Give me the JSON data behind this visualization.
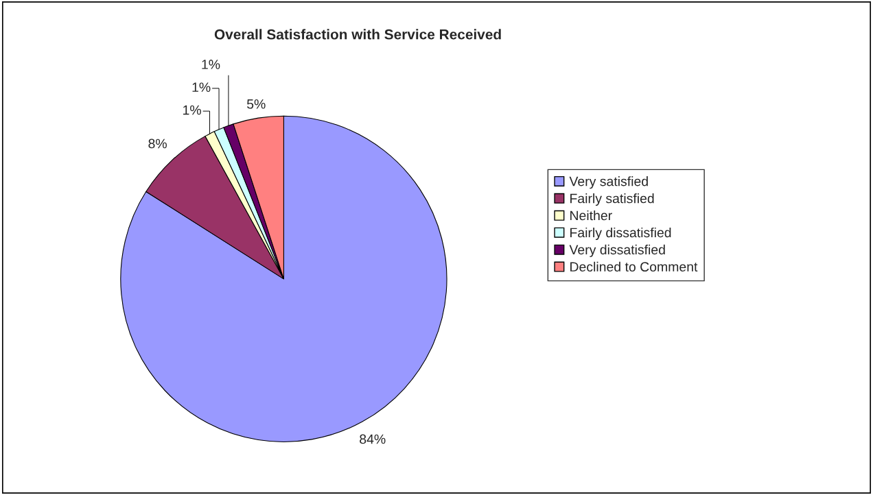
{
  "chart_data": {
    "type": "pie",
    "title": "Overall Satisfaction with Service Received",
    "categories": [
      "Very satisfied",
      "Fairly satisfied",
      "Neither",
      "Fairly dissatisfied",
      "Very dissatisfied",
      "Declined to Comment"
    ],
    "values": [
      84,
      8,
      1,
      1,
      1,
      5
    ],
    "value_labels": [
      "84%",
      "8%",
      "1%",
      "1%",
      "1%",
      "5%"
    ],
    "colors": [
      "#9999ff",
      "#993366",
      "#ffffcc",
      "#ccffff",
      "#660066",
      "#ff8080"
    ],
    "legend": "right"
  }
}
